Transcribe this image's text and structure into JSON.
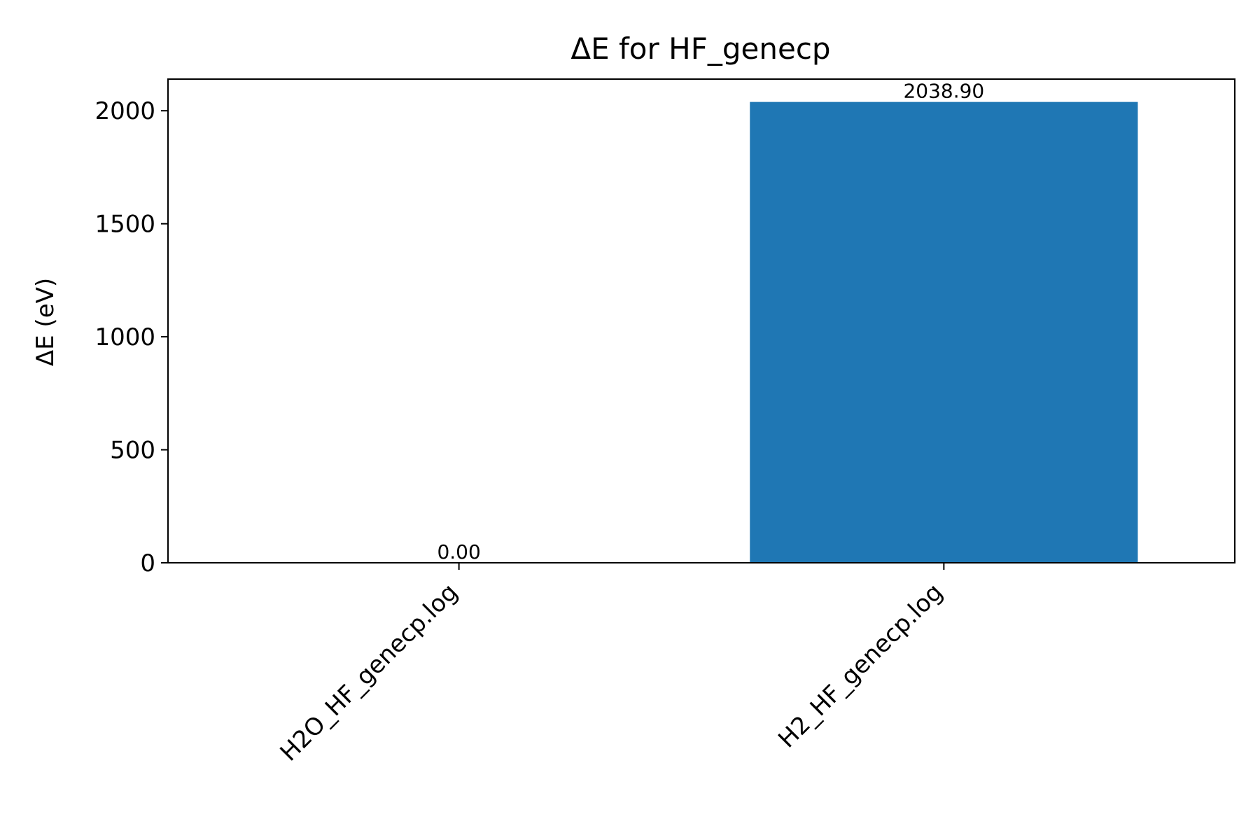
{
  "chart_data": {
    "type": "bar",
    "title": "ΔE for HF_genecp",
    "xlabel": "",
    "ylabel": "ΔE (eV)",
    "categories": [
      "H2O_HF_genecp.log",
      "H2_HF_genecp.log"
    ],
    "values": [
      0.0,
      2038.9
    ],
    "value_labels": [
      "0.00",
      "2038.90"
    ],
    "ylim": [
      0,
      2140
    ],
    "yticks": [
      0,
      500,
      1000,
      1500,
      2000
    ],
    "ytick_labels": [
      "0",
      "500",
      "1000",
      "1500",
      "2000"
    ],
    "bar_color": "#1f77b4",
    "grid": false,
    "legend": "none"
  }
}
